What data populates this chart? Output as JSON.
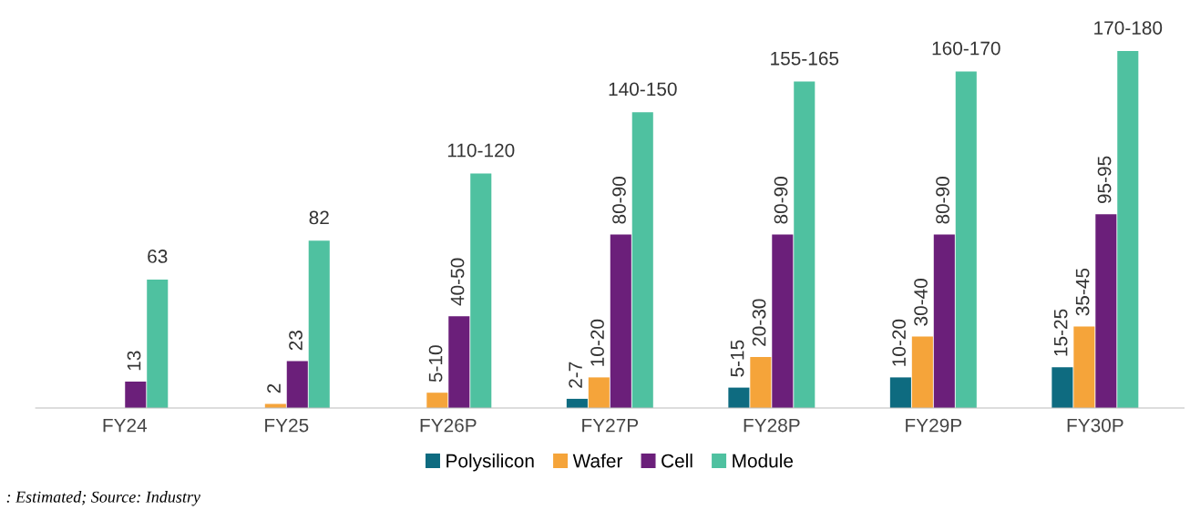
{
  "chart_data": {
    "type": "bar",
    "categories": [
      "FY24",
      "FY25",
      "FY26P",
      "FY27P",
      "FY28P",
      "FY29P",
      "FY30P"
    ],
    "series": [
      {
        "name": "Polysilicon",
        "color": "#0e6b80",
        "values": [
          null,
          null,
          null,
          4.5,
          10,
          15,
          20
        ],
        "value_labels": [
          null,
          null,
          null,
          "2-7",
          "5-15",
          "10-20",
          "15-25"
        ]
      },
      {
        "name": "Wafer",
        "color": "#f5a43a",
        "values": [
          null,
          2,
          7.5,
          15,
          25,
          35,
          40
        ],
        "value_labels": [
          null,
          "2",
          "5-10",
          "10-20",
          "20-30",
          "30-40",
          "35-45"
        ]
      },
      {
        "name": "Cell",
        "color": "#6b1f7a",
        "values": [
          13,
          23,
          45,
          85,
          85,
          85,
          95
        ],
        "value_labels": [
          "13",
          "23",
          "40-50",
          "80-90",
          "80-90",
          "80-90",
          "95-95"
        ]
      },
      {
        "name": "Module",
        "color": "#4fc1a0",
        "values": [
          63,
          82,
          115,
          145,
          160,
          165,
          175
        ],
        "value_labels": [
          "63",
          "82",
          "110-120",
          "140-150",
          "155-165",
          "160-170",
          "170-180"
        ]
      }
    ],
    "ylim": [
      0,
      175
    ],
    "tick_labels": "x",
    "legend": "bottom",
    "grid": false,
    "annotations": [
      ": Estimated; Source: Industry"
    ]
  }
}
